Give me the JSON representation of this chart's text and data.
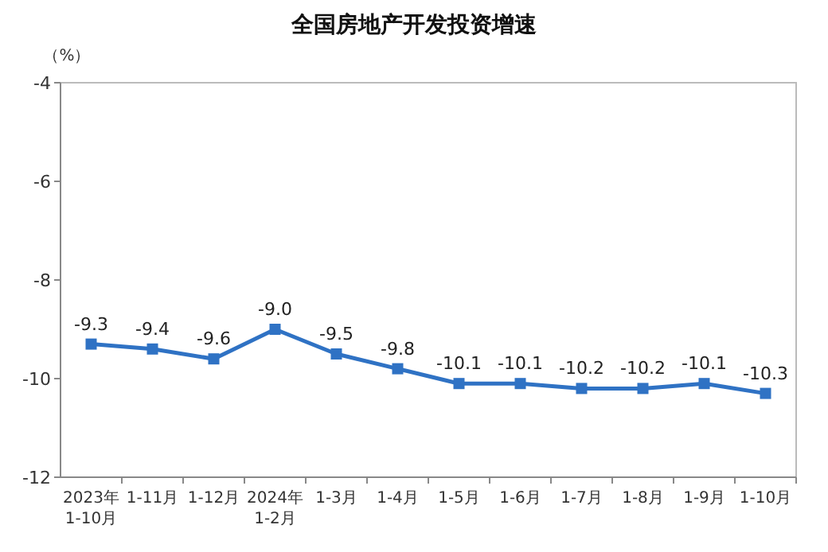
{
  "chart_data": {
    "type": "line",
    "title": "全国房地产开发投资增速",
    "ylabel": "（%）",
    "categories": [
      "2023年\n1-10月",
      "1-11月",
      "1-12月",
      "2024年\n1-2月",
      "1-3月",
      "1-4月",
      "1-5月",
      "1-6月",
      "1-7月",
      "1-8月",
      "1-9月",
      "1-10月"
    ],
    "series": [
      {
        "color": "#2f72c4",
        "values": [
          -9.3,
          -9.4,
          -9.6,
          -9.0,
          -9.5,
          -9.8,
          -10.1,
          -10.1,
          -10.2,
          -10.2,
          -10.1,
          -10.3
        ],
        "value_labels": [
          "-9.3",
          "-9.4",
          "-9.6",
          "-9.0",
          "-9.5",
          "-9.8",
          "-10.1",
          "-10.1",
          "-10.2",
          "-10.2",
          "-10.1",
          "-10.3"
        ]
      }
    ],
    "ylim": [
      -12,
      -4
    ],
    "yticks": [
      -12,
      -10,
      -8,
      -6,
      -4
    ],
    "marker": "square",
    "line_style": "solid",
    "grid": false
  }
}
